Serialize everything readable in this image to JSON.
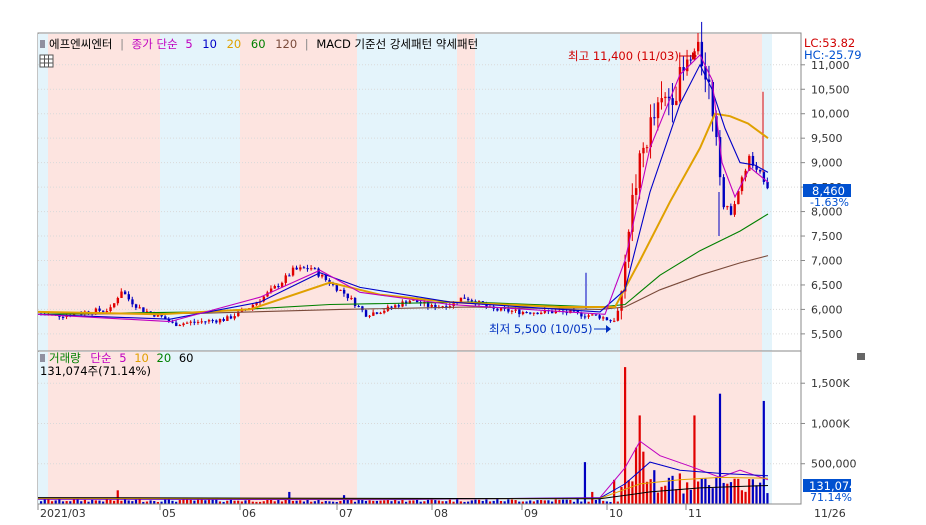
{
  "price_panel": {
    "legend": [
      {
        "text": "에프엔씨엔터",
        "color": "#000000"
      },
      {
        "text": "종가 단순",
        "color": "#c000c0"
      },
      {
        "text": "5",
        "color": "#c000c0"
      },
      {
        "text": "10",
        "color": "#0000c8"
      },
      {
        "text": "20",
        "color": "#e0a000"
      },
      {
        "text": "60",
        "color": "#008000"
      },
      {
        "text": "120",
        "color": "#7a4a3a"
      },
      {
        "text": "MACD 기준선 강세패턴  약세패턴",
        "color": "#000000"
      }
    ],
    "indicators": [
      {
        "text": "LC:53.82",
        "color": "#d00000"
      },
      {
        "text": "HC:-25.79",
        "color": "#0050d0"
      }
    ],
    "current_price": "8,460",
    "current_change": "-1.63%",
    "high_label": "최고 11,400 (11/03)",
    "low_label": "최저 5,500 (10/05)",
    "y_ticks": [
      "11,000",
      "10,500",
      "10,000",
      "9,500",
      "9,000",
      "8,500",
      "8,000",
      "7,500",
      "7,000",
      "6,500",
      "6,000",
      "5,500"
    ]
  },
  "volume_panel": {
    "legend": [
      {
        "text": "거래량",
        "color": "#008000"
      },
      {
        "text": "단순",
        "color": "#c000c0"
      },
      {
        "text": "5",
        "color": "#c000c0"
      },
      {
        "text": "10",
        "color": "#e0a000"
      },
      {
        "text": "20",
        "color": "#008000"
      },
      {
        "text": "60",
        "color": "#000000"
      }
    ],
    "volume_text": "131,074주(71.14%)",
    "current_volume": "131,074",
    "current_ratio": "71.14%",
    "y_ticks": [
      "1,500K",
      "1,000K",
      "500,000"
    ]
  },
  "x_ticks": [
    "2021/03",
    "05",
    "06",
    "07",
    "08",
    "09",
    "10",
    "11",
    "11/26"
  ],
  "colors": {
    "up": "#e00000",
    "down": "#0000c0",
    "pink_band": "#fde4e0",
    "blue_band": "#e4f4fb",
    "ma5": "#c000c0",
    "ma10": "#0000c8",
    "ma20": "#e0a000",
    "ma60": "#008000",
    "ma120": "#7a4a3a"
  },
  "chart_data": {
    "type": "candlestick",
    "series": [
      {
        "name": "5",
        "type": "line",
        "x": [
          "2021/03",
          "2021/05",
          "2021/06",
          "2021/07",
          "2021/08",
          "2021/09",
          "2021/10",
          "2021/11",
          "2021/11/26"
        ],
        "values": [
          5900,
          5750,
          6300,
          6650,
          6000,
          5950,
          6000,
          11000,
          8700
        ]
      },
      {
        "name": "10",
        "type": "line",
        "x": [
          "2021/03",
          "2021/05",
          "2021/06",
          "2021/07",
          "2021/08",
          "2021/09",
          "2021/10",
          "2021/11",
          "2021/11/26"
        ],
        "values": [
          5900,
          5800,
          6200,
          6700,
          6050,
          5950,
          5950,
          10800,
          8800
        ]
      },
      {
        "name": "20",
        "type": "line",
        "x": [
          "2021/03",
          "2021/05",
          "2021/06",
          "2021/07",
          "2021/08",
          "2021/09",
          "2021/10",
          "2021/11",
          "2021/11/26"
        ],
        "values": [
          5950,
          5880,
          6050,
          6500,
          6100,
          6000,
          6050,
          9900,
          9500
        ]
      },
      {
        "name": "60",
        "type": "line",
        "x": [
          "2021/03",
          "2021/05",
          "2021/06",
          "2021/07",
          "2021/08",
          "2021/09",
          "2021/10",
          "2021/11",
          "2021/11/26"
        ],
        "values": [
          5900,
          5950,
          6000,
          6150,
          6150,
          6050,
          6000,
          7200,
          7900
        ]
      },
      {
        "name": "120",
        "type": "line",
        "x": [
          "2021/03",
          "2021/05",
          "2021/06",
          "2021/07",
          "2021/08",
          "2021/09",
          "2021/10",
          "2021/11",
          "2021/11/26"
        ],
        "values": [
          5900,
          5920,
          5950,
          6000,
          6050,
          6050,
          6000,
          6500,
          7100
        ]
      }
    ],
    "annotations": [
      "최고 11,400 (11/03)",
      "최저 5,500 (10/05)"
    ],
    "ylim": [
      5150,
      11650
    ],
    "volume_ylim": [
      0,
      1900000
    ],
    "highlight_last_close": 8460
  }
}
